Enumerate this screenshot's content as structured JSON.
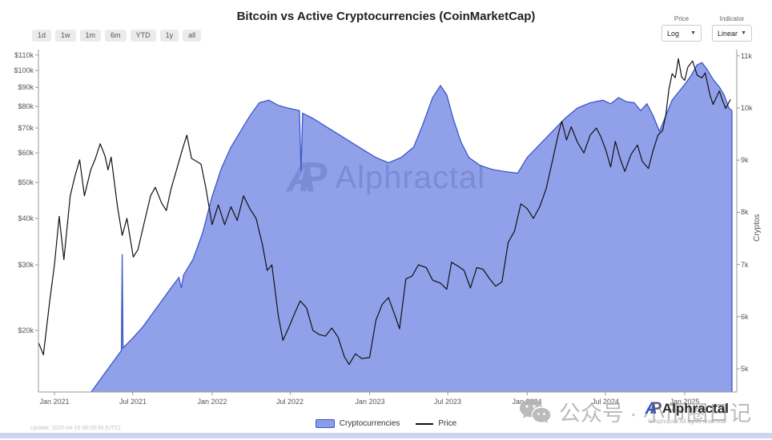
{
  "title": "Bitcoin vs Active Cryptocurrencies (CoinMarketCap)",
  "toolbar": {
    "ranges": [
      "1d",
      "1w",
      "1m",
      "6m",
      "YTD",
      "1y",
      "all"
    ],
    "price": {
      "label": "Price",
      "value": "Log"
    },
    "indicator": {
      "label": "Indicator",
      "value": "Linear"
    }
  },
  "legend": {
    "items": [
      {
        "label": "Cryptocurrencies",
        "swatch": "area"
      },
      {
        "label": "Price",
        "swatch": "line"
      }
    ]
  },
  "watermark": {
    "logo_a": "A",
    "logo_p": "P",
    "brand": "Alphractal"
  },
  "footer": {
    "update": "Update: 2025-04-15 08:09:36 (UTC)",
    "brand": "Alphractal",
    "copyright": "© Alphractal All rights reserved."
  },
  "social_watermark": {
    "icon": "wechat-icon",
    "text": "公众号 · 小币圈日记"
  },
  "colors": {
    "area_fill": "#8b9ce8",
    "area_stroke": "#3a57c8",
    "price_line": "#111111",
    "axis_line": "#999999",
    "accent_blue": "#2f55d4",
    "bottom_strip": "#ccd6f1"
  },
  "chart_data": {
    "type": "line",
    "title": "Bitcoin vs Active Cryptocurrencies (CoinMarketCap)",
    "grid": false,
    "legend_position": "bottom-center",
    "x_axis": {
      "unit": "date (decimal year)",
      "range": [
        2020.9,
        2025.33
      ],
      "ticks": [
        {
          "t": 2021.0,
          "label": "Jan 2021"
        },
        {
          "t": 2021.496,
          "label": "Jul 2021"
        },
        {
          "t": 2022.0,
          "label": "Jan 2022"
        },
        {
          "t": 2022.496,
          "label": "Jul 2022"
        },
        {
          "t": 2023.0,
          "label": "Jan 2023"
        },
        {
          "t": 2023.496,
          "label": "Jul 2023"
        },
        {
          "t": 2024.0,
          "label": "Jan 2024"
        },
        {
          "t": 2024.496,
          "label": "Jul 2024"
        },
        {
          "t": 2025.0,
          "label": "Jan 2025"
        }
      ]
    },
    "left_axis": {
      "scale": "log",
      "unit": "USD (thousands)",
      "ticks": [
        {
          "v": 110,
          "label": "$110k"
        },
        {
          "v": 100,
          "label": "$100k"
        },
        {
          "v": 90,
          "label": "$90k"
        },
        {
          "v": 80,
          "label": "$80k"
        },
        {
          "v": 70,
          "label": "$70k"
        },
        {
          "v": 60,
          "label": "$60k"
        },
        {
          "v": 50,
          "label": "$50k"
        },
        {
          "v": 40,
          "label": "$40k"
        },
        {
          "v": 30,
          "label": "$30k"
        },
        {
          "v": 20,
          "label": "$20k"
        }
      ]
    },
    "right_axis": {
      "scale": "linear",
      "label": "Cryptos",
      "unit": "count (thousands)",
      "range": [
        4.55,
        11.1
      ],
      "ticks": [
        {
          "v": 11,
          "label": "11k"
        },
        {
          "v": 10,
          "label": "10k"
        },
        {
          "v": 9,
          "label": "9k"
        },
        {
          "v": 8,
          "label": "8k"
        },
        {
          "v": 7,
          "label": "7k"
        },
        {
          "v": 6,
          "label": "6k"
        },
        {
          "v": 5,
          "label": "5k"
        }
      ]
    },
    "series": [
      {
        "name": "Cryptocurrencies",
        "axis": "right",
        "style": "area",
        "points": [
          [
            2021.22,
            4.5
          ],
          [
            2021.28,
            4.75
          ],
          [
            2021.34,
            5.0
          ],
          [
            2021.4,
            5.25
          ],
          [
            2021.425,
            5.35
          ],
          [
            2021.43,
            7.2
          ],
          [
            2021.435,
            5.4
          ],
          [
            2021.5,
            5.6
          ],
          [
            2021.56,
            5.8
          ],
          [
            2021.62,
            6.05
          ],
          [
            2021.68,
            6.3
          ],
          [
            2021.74,
            6.55
          ],
          [
            2021.79,
            6.75
          ],
          [
            2021.805,
            6.55
          ],
          [
            2021.82,
            6.8
          ],
          [
            2021.88,
            7.1
          ],
          [
            2021.94,
            7.6
          ],
          [
            2022.0,
            8.3
          ],
          [
            2022.06,
            8.85
          ],
          [
            2022.12,
            9.25
          ],
          [
            2022.18,
            9.55
          ],
          [
            2022.24,
            9.85
          ],
          [
            2022.3,
            10.1
          ],
          [
            2022.36,
            10.15
          ],
          [
            2022.42,
            10.05
          ],
          [
            2022.48,
            10.0
          ],
          [
            2022.555,
            9.95
          ],
          [
            2022.565,
            8.8
          ],
          [
            2022.575,
            9.9
          ],
          [
            2022.64,
            9.8
          ],
          [
            2022.72,
            9.65
          ],
          [
            2022.8,
            9.5
          ],
          [
            2022.88,
            9.35
          ],
          [
            2022.96,
            9.2
          ],
          [
            2023.04,
            9.05
          ],
          [
            2023.12,
            8.95
          ],
          [
            2023.2,
            9.05
          ],
          [
            2023.28,
            9.25
          ],
          [
            2023.34,
            9.7
          ],
          [
            2023.4,
            10.2
          ],
          [
            2023.45,
            10.43
          ],
          [
            2023.49,
            10.25
          ],
          [
            2023.53,
            9.8
          ],
          [
            2023.58,
            9.35
          ],
          [
            2023.63,
            9.05
          ],
          [
            2023.7,
            8.9
          ],
          [
            2023.78,
            8.82
          ],
          [
            2023.86,
            8.78
          ],
          [
            2023.94,
            8.75
          ],
          [
            2024.0,
            9.05
          ],
          [
            2024.08,
            9.3
          ],
          [
            2024.16,
            9.55
          ],
          [
            2024.24,
            9.8
          ],
          [
            2024.32,
            10.0
          ],
          [
            2024.4,
            10.1
          ],
          [
            2024.48,
            10.15
          ],
          [
            2024.53,
            10.08
          ],
          [
            2024.58,
            10.2
          ],
          [
            2024.63,
            10.12
          ],
          [
            2024.68,
            10.1
          ],
          [
            2024.72,
            9.95
          ],
          [
            2024.76,
            10.08
          ],
          [
            2024.8,
            9.85
          ],
          [
            2024.84,
            9.55
          ],
          [
            2024.88,
            9.85
          ],
          [
            2024.92,
            10.15
          ],
          [
            2024.96,
            10.3
          ],
          [
            2025.0,
            10.45
          ],
          [
            2025.04,
            10.62
          ],
          [
            2025.08,
            10.83
          ],
          [
            2025.11,
            10.87
          ],
          [
            2025.14,
            10.75
          ],
          [
            2025.18,
            10.55
          ],
          [
            2025.22,
            10.4
          ],
          [
            2025.25,
            10.25
          ],
          [
            2025.28,
            10.0
          ],
          [
            2025.3,
            9.95
          ]
        ]
      },
      {
        "name": "Price",
        "axis": "left",
        "style": "line",
        "points": [
          [
            2020.9,
            18.5
          ],
          [
            2020.93,
            17.2
          ],
          [
            2020.97,
            24
          ],
          [
            2021.0,
            30
          ],
          [
            2021.03,
            40.5
          ],
          [
            2021.06,
            31
          ],
          [
            2021.1,
            46
          ],
          [
            2021.13,
            52
          ],
          [
            2021.16,
            57.5
          ],
          [
            2021.19,
            46
          ],
          [
            2021.23,
            54
          ],
          [
            2021.26,
            58
          ],
          [
            2021.29,
            63.5
          ],
          [
            2021.32,
            59
          ],
          [
            2021.34,
            54
          ],
          [
            2021.36,
            58.5
          ],
          [
            2021.4,
            43
          ],
          [
            2021.43,
            36
          ],
          [
            2021.46,
            40
          ],
          [
            2021.5,
            31.5
          ],
          [
            2021.53,
            33
          ],
          [
            2021.57,
            39
          ],
          [
            2021.61,
            46
          ],
          [
            2021.64,
            48.5
          ],
          [
            2021.68,
            44
          ],
          [
            2021.71,
            42
          ],
          [
            2021.74,
            48
          ],
          [
            2021.78,
            55
          ],
          [
            2021.81,
            61
          ],
          [
            2021.84,
            67
          ],
          [
            2021.87,
            58
          ],
          [
            2021.9,
            57
          ],
          [
            2021.93,
            56
          ],
          [
            2021.96,
            48.5
          ],
          [
            2022.0,
            38.5
          ],
          [
            2022.04,
            43.5
          ],
          [
            2022.08,
            38.5
          ],
          [
            2022.12,
            43
          ],
          [
            2022.16,
            39.5
          ],
          [
            2022.2,
            46
          ],
          [
            2022.24,
            42.5
          ],
          [
            2022.28,
            40
          ],
          [
            2022.32,
            34
          ],
          [
            2022.35,
            29
          ],
          [
            2022.38,
            30
          ],
          [
            2022.42,
            22
          ],
          [
            2022.45,
            18.8
          ],
          [
            2022.49,
            20.5
          ],
          [
            2022.53,
            22.5
          ],
          [
            2022.56,
            24
          ],
          [
            2022.6,
            23
          ],
          [
            2022.64,
            20
          ],
          [
            2022.68,
            19.5
          ],
          [
            2022.72,
            19.3
          ],
          [
            2022.76,
            20.3
          ],
          [
            2022.8,
            19.2
          ],
          [
            2022.84,
            17
          ],
          [
            2022.87,
            16.2
          ],
          [
            2022.91,
            17.3
          ],
          [
            2022.95,
            16.8
          ],
          [
            2023.0,
            16.9
          ],
          [
            2023.04,
            21.3
          ],
          [
            2023.08,
            23.5
          ],
          [
            2023.12,
            24.5
          ],
          [
            2023.16,
            22
          ],
          [
            2023.19,
            20.2
          ],
          [
            2023.23,
            27.5
          ],
          [
            2023.27,
            28
          ],
          [
            2023.31,
            30
          ],
          [
            2023.36,
            29.5
          ],
          [
            2023.4,
            27.3
          ],
          [
            2023.45,
            26.8
          ],
          [
            2023.49,
            25.8
          ],
          [
            2023.52,
            30.5
          ],
          [
            2023.56,
            29.8
          ],
          [
            2023.6,
            29
          ],
          [
            2023.64,
            26
          ],
          [
            2023.68,
            29.5
          ],
          [
            2023.72,
            29.2
          ],
          [
            2023.76,
            27.6
          ],
          [
            2023.8,
            26.3
          ],
          [
            2023.84,
            27
          ],
          [
            2023.88,
            34.5
          ],
          [
            2023.92,
            37
          ],
          [
            2023.96,
            43.8
          ],
          [
            2024.0,
            42.5
          ],
          [
            2024.04,
            40
          ],
          [
            2024.08,
            43
          ],
          [
            2024.12,
            48
          ],
          [
            2024.16,
            57
          ],
          [
            2024.2,
            68
          ],
          [
            2024.22,
            73
          ],
          [
            2024.25,
            65
          ],
          [
            2024.28,
            70.5
          ],
          [
            2024.32,
            64
          ],
          [
            2024.36,
            60
          ],
          [
            2024.4,
            67
          ],
          [
            2024.44,
            70
          ],
          [
            2024.47,
            66
          ],
          [
            2024.5,
            61
          ],
          [
            2024.53,
            55
          ],
          [
            2024.56,
            64.5
          ],
          [
            2024.59,
            58
          ],
          [
            2024.62,
            53.5
          ],
          [
            2024.66,
            59.5
          ],
          [
            2024.7,
            63
          ],
          [
            2024.73,
            57
          ],
          [
            2024.77,
            54.5
          ],
          [
            2024.8,
            61
          ],
          [
            2024.83,
            67
          ],
          [
            2024.86,
            69
          ],
          [
            2024.88,
            76
          ],
          [
            2024.9,
            89
          ],
          [
            2024.92,
            98
          ],
          [
            2024.94,
            95.5
          ],
          [
            2024.96,
            107.5
          ],
          [
            2024.98,
            96
          ],
          [
            2025.0,
            94
          ],
          [
            2025.02,
            102
          ],
          [
            2025.05,
            106
          ],
          [
            2025.08,
            97
          ],
          [
            2025.11,
            95.5
          ],
          [
            2025.13,
            98.5
          ],
          [
            2025.16,
            86
          ],
          [
            2025.18,
            81
          ],
          [
            2025.2,
            84.5
          ],
          [
            2025.22,
            88
          ],
          [
            2025.24,
            83
          ],
          [
            2025.26,
            79
          ],
          [
            2025.29,
            83.5
          ]
        ]
      }
    ]
  }
}
